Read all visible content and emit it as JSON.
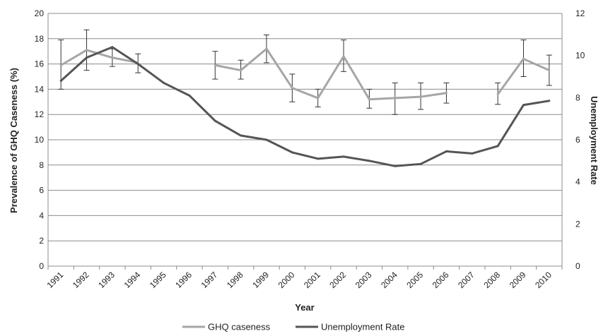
{
  "chart_data": {
    "type": "line",
    "title": "",
    "xlabel": "Year",
    "ylabel_left": "Prevalence of GHQ Caseness (%)",
    "ylabel_right": "Unemployment Rate",
    "categories": [
      "1991",
      "1992",
      "1993",
      "1994",
      "1995",
      "1996",
      "1997",
      "1998",
      "1999",
      "2000",
      "2001",
      "2002",
      "2003",
      "2004",
      "2005",
      "2006",
      "2007",
      "2008",
      "2009",
      "2010"
    ],
    "y_left": {
      "min": 0,
      "max": 20,
      "ticks": [
        "0",
        "2",
        "4",
        "6",
        "8",
        "10",
        "12",
        "14",
        "16",
        "18",
        "20"
      ]
    },
    "y_right": {
      "min": 0,
      "max": 12,
      "ticks": [
        "0",
        "2",
        "4",
        "6",
        "8",
        "10",
        "12"
      ]
    },
    "grid": true,
    "legend_position": "bottom",
    "series": [
      {
        "name": "GHQ caseness",
        "axis": "left",
        "color": "#a6a6a6",
        "values": [
          15.9,
          17.1,
          16.5,
          16.1,
          null,
          null,
          15.9,
          15.5,
          17.2,
          14.1,
          13.3,
          16.6,
          13.2,
          13.3,
          13.4,
          13.7,
          null,
          13.6,
          16.4,
          15.5
        ],
        "error_low": [
          14.0,
          15.5,
          15.8,
          15.3,
          null,
          null,
          14.8,
          14.8,
          16.1,
          13.0,
          12.6,
          15.4,
          12.5,
          12.0,
          12.4,
          12.9,
          null,
          12.8,
          15.0,
          14.3
        ],
        "error_high": [
          17.9,
          18.7,
          17.2,
          16.8,
          null,
          null,
          17.0,
          16.3,
          18.3,
          15.2,
          14.0,
          17.9,
          14.0,
          14.5,
          14.5,
          14.5,
          null,
          14.5,
          17.9,
          16.7
        ]
      },
      {
        "name": "Unemployment Rate",
        "axis": "right",
        "color": "#555555",
        "values": [
          8.8,
          9.9,
          10.4,
          9.6,
          8.7,
          8.1,
          6.9,
          6.2,
          6.0,
          5.4,
          5.1,
          5.2,
          5.0,
          4.75,
          4.85,
          5.45,
          5.35,
          5.7,
          7.65,
          7.85
        ]
      }
    ]
  }
}
